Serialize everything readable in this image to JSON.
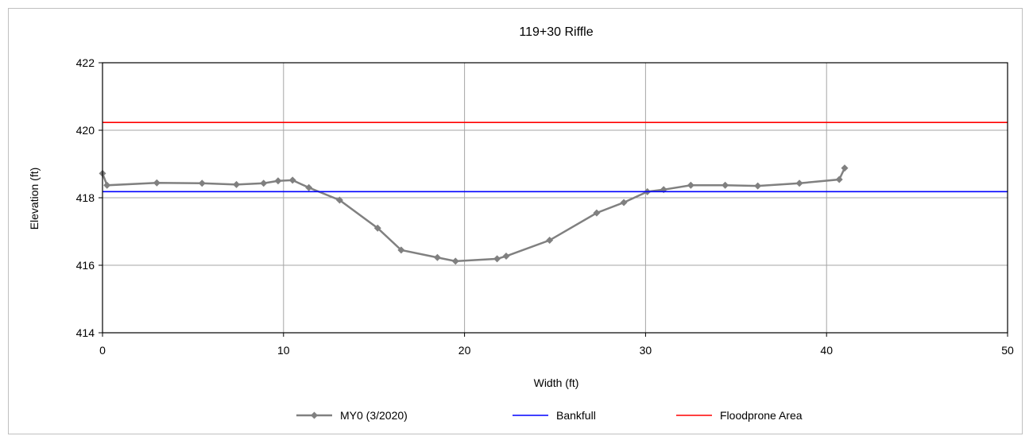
{
  "chart_data": {
    "type": "line",
    "title": "119+30 Riffle",
    "xlabel": "Width (ft)",
    "ylabel": "Elevation (ft)",
    "xlim": [
      0,
      50
    ],
    "ylim": [
      414,
      422
    ],
    "xticks": [
      0,
      10,
      20,
      30,
      40,
      50
    ],
    "yticks": [
      414,
      416,
      418,
      420,
      422
    ],
    "grid": true,
    "legend_position": "bottom",
    "series": [
      {
        "name": "MY0 (3/2020)",
        "color": "#808080",
        "marker": "diamond",
        "x": [
          0.0,
          0.25,
          3.0,
          5.5,
          7.4,
          8.9,
          9.7,
          10.5,
          11.4,
          13.1,
          15.2,
          16.5,
          18.5,
          19.5,
          21.8,
          22.3,
          24.7,
          27.3,
          28.8,
          30.1,
          31.0,
          32.5,
          34.4,
          36.2,
          38.5,
          40.7,
          41.0
        ],
        "y": [
          418.72,
          418.37,
          418.44,
          418.43,
          418.39,
          418.43,
          418.5,
          418.52,
          418.3,
          417.93,
          417.1,
          416.45,
          416.23,
          416.12,
          416.19,
          416.27,
          416.74,
          417.55,
          417.86,
          418.18,
          418.24,
          418.37,
          418.37,
          418.35,
          418.43,
          418.54,
          418.88
        ]
      },
      {
        "name": "Bankfull",
        "color": "#0000ff",
        "marker": "none",
        "x": [
          0,
          50
        ],
        "y": [
          418.18,
          418.18
        ]
      },
      {
        "name": "Floodprone Area",
        "color": "#ff0000",
        "marker": "none",
        "x": [
          0,
          50
        ],
        "y": [
          420.23,
          420.23
        ]
      }
    ]
  }
}
